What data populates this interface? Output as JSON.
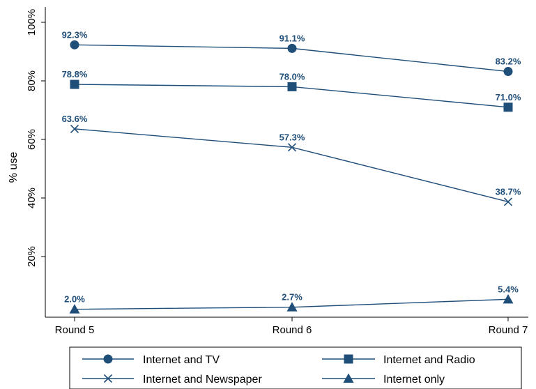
{
  "chart_data": {
    "type": "line",
    "categories": [
      "Round 5",
      "Round 6",
      "Round 7"
    ],
    "ylabel": "% use",
    "xlabel": "",
    "ylim": [
      0,
      100
    ],
    "yticks": [
      20,
      40,
      60,
      80,
      100
    ],
    "ytick_labels": [
      "20%",
      "40%",
      "60%",
      "80%",
      "100%"
    ],
    "grid": false,
    "legend_position": "bottom",
    "color": "#1f4e79",
    "series": [
      {
        "name": "Internet and TV",
        "marker": "circle",
        "values": [
          92.3,
          91.1,
          83.2
        ],
        "labels": [
          "92.3%",
          "91.1%",
          "83.2%"
        ]
      },
      {
        "name": "Internet and Radio",
        "marker": "square",
        "values": [
          78.8,
          78.0,
          71.0
        ],
        "labels": [
          "78.8%",
          "78.0%",
          "71.0%"
        ]
      },
      {
        "name": "Internet and Newspaper",
        "marker": "x",
        "values": [
          63.6,
          57.3,
          38.7
        ],
        "labels": [
          "63.6%",
          "57.3%",
          "38.7%"
        ]
      },
      {
        "name": "Internet only",
        "marker": "triangle",
        "values": [
          2.0,
          2.7,
          5.4
        ],
        "labels": [
          "2.0%",
          "2.7%",
          "5.4%"
        ]
      }
    ]
  }
}
